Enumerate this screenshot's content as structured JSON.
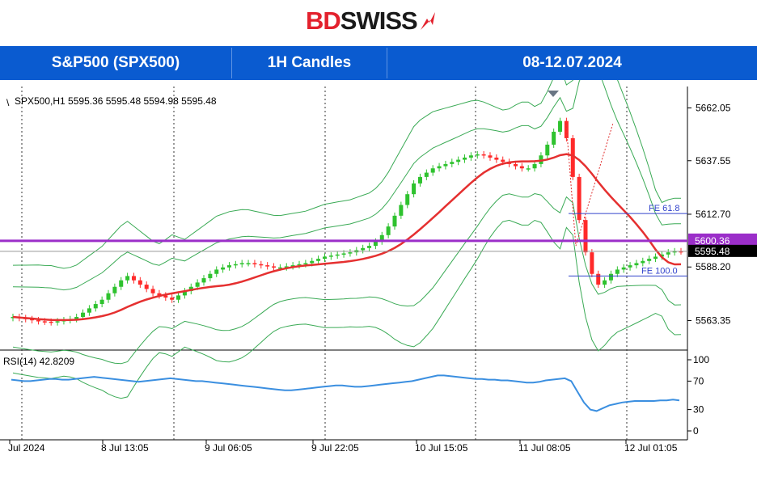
{
  "brand": {
    "part1": "BD",
    "part2": "SWISS"
  },
  "header": {
    "symbol": "S&P500 (SPX500)",
    "timeframe": "1H Candles",
    "period": "08-12.07.2024"
  },
  "chart_data": {
    "type": "candlestick",
    "info": "SPX500,H1  5595.36 5595.48 5594.98 5595.48",
    "price_axis": {
      "ylim": [
        5550,
        5672
      ],
      "ticks": [
        "5662.05",
        "5637.55",
        "5612.70",
        "5588.20",
        "5563.35"
      ]
    },
    "time_axis": {
      "ticks": [
        "Jul 2024",
        "8 Jul 13:05",
        "9 Jul 06:05",
        "9 Jul 22:05",
        "10 Jul 15:05",
        "11 Jul 08:05",
        "12 Jul 01:05"
      ]
    },
    "levels": {
      "support": {
        "label": "5600.36",
        "value": 5600.36,
        "color": "#9b2ec9"
      },
      "current": {
        "label": "5595.48",
        "value": 5595.48
      }
    },
    "fib": [
      {
        "label": "FE 61.8",
        "value": 5613
      },
      {
        "label": "FE 100.0",
        "value": 5584
      }
    ],
    "ma_color": "#e53030",
    "band_color": "#3aaa55",
    "close": [
      5565,
      5564.5,
      5564,
      5563.5,
      5563,
      5562.8,
      5562.5,
      5563,
      5563.5,
      5564,
      5565,
      5567,
      5569,
      5571,
      5573,
      5576,
      5579,
      5582,
      5584,
      5582,
      5580,
      5578,
      5576,
      5575,
      5574,
      5573,
      5575,
      5577,
      5579,
      5581,
      5583,
      5585,
      5587,
      5588,
      5589,
      5589.5,
      5590,
      5590,
      5589.5,
      5589,
      5588.5,
      5588,
      5588,
      5588.5,
      5589,
      5589.5,
      5590,
      5591,
      5592,
      5593,
      5593.5,
      5594,
      5594.5,
      5595,
      5596,
      5597,
      5598,
      5600,
      5603,
      5607,
      5612,
      5617,
      5622,
      5627,
      5630,
      5632,
      5634,
      5635,
      5636,
      5637,
      5638,
      5639,
      5640,
      5640.5,
      5640,
      5639,
      5638,
      5637,
      5636,
      5635,
      5634,
      5634,
      5636,
      5640,
      5645,
      5651,
      5656,
      5648,
      5630,
      5610,
      5595,
      5585,
      5580,
      5582,
      5585,
      5587,
      5588,
      5589,
      5590,
      5591,
      5592,
      5593,
      5594,
      5595,
      5595.5,
      5595.48
    ]
  },
  "rsi": {
    "label": "RSI(14) 42.8209",
    "ylim": [
      0,
      100
    ],
    "ticks": [
      "100",
      "70",
      "30",
      "0"
    ],
    "values": [
      72,
      71,
      70,
      70,
      71,
      72,
      73,
      73,
      72,
      72,
      73,
      74,
      75,
      76,
      75,
      74,
      73,
      72,
      71,
      70,
      69,
      70,
      71,
      72,
      73,
      74,
      73,
      72,
      71,
      70,
      70,
      69,
      68,
      67,
      66,
      65,
      64,
      63,
      62,
      61,
      60,
      59,
      58,
      57,
      57,
      58,
      59,
      60,
      61,
      62,
      63,
      64,
      64,
      63,
      62,
      62,
      63,
      64,
      65,
      66,
      67,
      68,
      69,
      70,
      72,
      74,
      76,
      78,
      78,
      77,
      76,
      75,
      74,
      73,
      73,
      72,
      72,
      71,
      71,
      70,
      69,
      68,
      68,
      69,
      71,
      72,
      73,
      74,
      70,
      55,
      40,
      30,
      28,
      32,
      36,
      38,
      40,
      41,
      42,
      42,
      42,
      42,
      43,
      43,
      44,
      43
    ]
  },
  "colors": {
    "header": "#0a5bd0",
    "brand_red": "#e3212d",
    "candle_up": "#2ec22e",
    "candle_down": "#ff2a2a",
    "rsi_line": "#3b8fe0"
  }
}
